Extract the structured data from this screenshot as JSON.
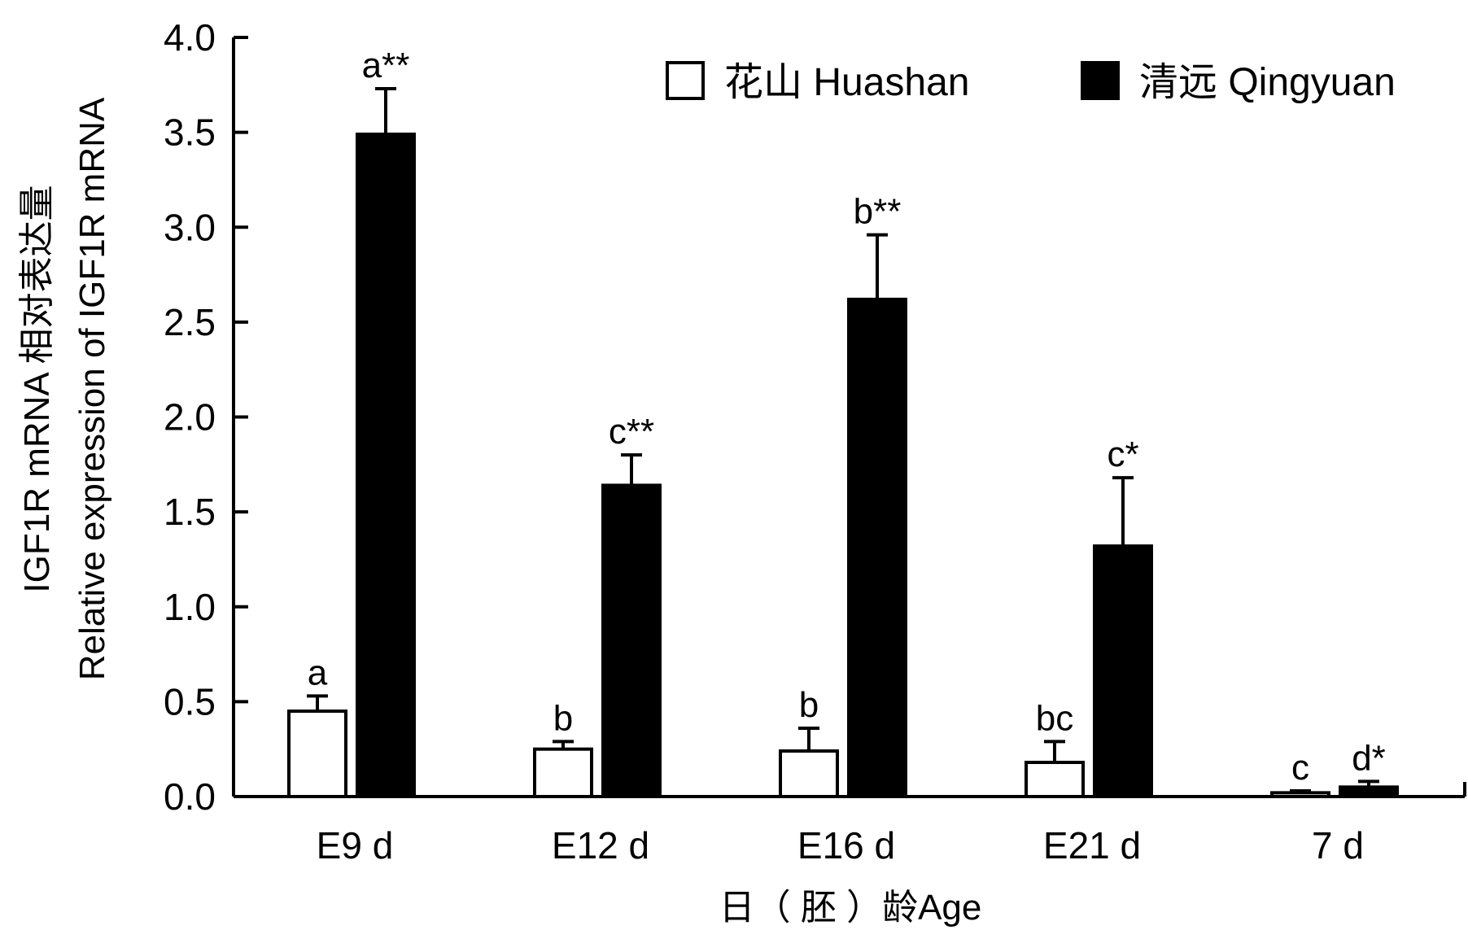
{
  "chart_data": {
    "type": "bar",
    "xlabel": "日（ 胚 ）龄Age",
    "ylabel_line1": "IGF1R mRNA 相对表达量",
    "ylabel_line2": "Relative expression of IGF1R mRNA",
    "ylim": [
      0,
      4.0
    ],
    "yticks": [
      "0.0",
      "0.5",
      "1.0",
      "1.5",
      "2.0",
      "2.5",
      "3.0",
      "3.5",
      "4.0"
    ],
    "categories": [
      "E9 d",
      "E12 d",
      "E16 d",
      "E21 d",
      "7 d"
    ],
    "legend_position": "top-right",
    "series": [
      {
        "name": "花山 Huashan",
        "fill": "#ffffff",
        "values": [
          0.45,
          0.25,
          0.24,
          0.18,
          0.02
        ],
        "errors": [
          0.08,
          0.04,
          0.12,
          0.11,
          0.01
        ],
        "labels": [
          "a",
          "b",
          "b",
          "bc",
          "c"
        ]
      },
      {
        "name": "清远 Qingyuan",
        "fill": "#000000",
        "values": [
          3.49,
          1.64,
          2.62,
          1.32,
          0.05
        ],
        "errors": [
          0.24,
          0.16,
          0.34,
          0.36,
          0.03
        ],
        "labels": [
          "a**",
          "c**",
          "b**",
          "c*",
          "d*"
        ]
      }
    ],
    "grid": false
  }
}
